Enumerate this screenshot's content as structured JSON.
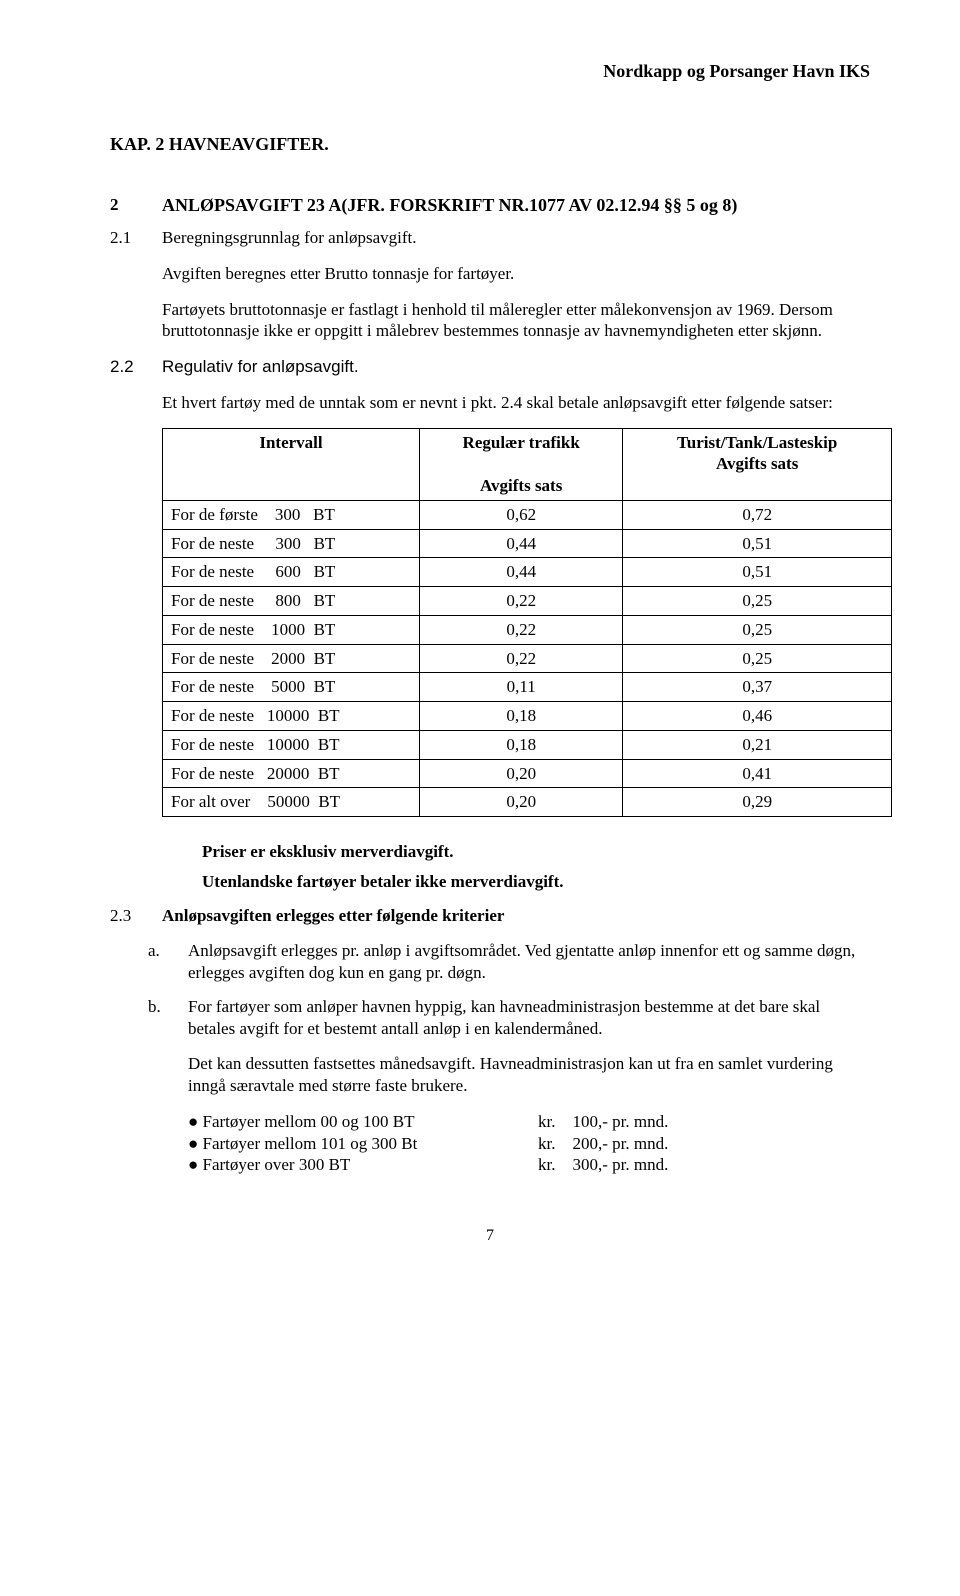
{
  "header": "Nordkapp og Porsanger Havn IKS",
  "kap": "KAP. 2   HAVNEAVGIFTER.",
  "s2": {
    "num": "2",
    "title": "ANLØPSAVGIFT 23 A(JFR. FORSKRIFT NR.1077 AV 02.12.94 §§ 5 og 8)"
  },
  "s21": {
    "num": "2.1",
    "title": "Beregningsgrunnlag for anløpsavgift.",
    "p1": "Avgiften beregnes etter Brutto tonnasje for fartøyer.",
    "p2": "Fartøyets bruttotonnasje er fastlagt i henhold til måleregler etter målekonvensjon av 1969. Dersom bruttotonnasje ikke er oppgitt i målebrev bestemmes tonnasje av havnemyndigheten etter skjønn."
  },
  "s22": {
    "num": "2.2",
    "title": "Regulativ for anløpsavgift.",
    "intro": "Et hvert fartøy med de unntak som er nevnt i pkt. 2.4 skal betale anløpsavgift etter følgende satser:"
  },
  "table": {
    "headers": {
      "c1": "Intervall",
      "c2a": "Regulær trafikk",
      "c2b": "Avgifts sats",
      "c3a": "Turist/Tank/Lasteskip",
      "c3b": "Avgifts sats"
    },
    "rows": [
      {
        "i": "For de første    300   BT",
        "a": "0,62",
        "b": "0,72"
      },
      {
        "i": "For de neste     300   BT",
        "a": "0,44",
        "b": "0,51"
      },
      {
        "i": "For de neste     600   BT",
        "a": "0,44",
        "b": "0,51"
      },
      {
        "i": "For de neste     800   BT",
        "a": "0,22",
        "b": "0,25"
      },
      {
        "i": "For de neste    1000  BT",
        "a": "0,22",
        "b": "0,25"
      },
      {
        "i": "For de neste    2000  BT",
        "a": "0,22",
        "b": "0,25"
      },
      {
        "i": "For de neste    5000  BT",
        "a": "0,11",
        "b": "0,37"
      },
      {
        "i": "For de neste   10000  BT",
        "a": "0,18",
        "b": "0,46"
      },
      {
        "i": "For de neste   10000  BT",
        "a": "0,18",
        "b": "0,21"
      },
      {
        "i": "For de neste   20000  BT",
        "a": "0,20",
        "b": "0,41"
      },
      {
        "i": "For alt over    50000  BT",
        "a": "0,20",
        "b": "0,29"
      }
    ]
  },
  "notes": {
    "n1": "Priser er eksklusiv merverdiavgift.",
    "n2": "Utenlandske fartøyer betaler ikke merverdiavgift."
  },
  "s23": {
    "num": "2.3",
    "title": "Anløpsavgiften erlegges etter følgende kriterier",
    "a": {
      "lbl": "a.",
      "txt": "Anløpsavgift erlegges pr. anløp i avgiftsområdet.  Ved gjentatte anløp innenfor ett og samme døgn, erlegges avgiften dog kun en gang pr. døgn."
    },
    "b": {
      "lbl": "b.",
      "txt": "For fartøyer som anløper havnen hyppig, kan havneadministrasjon bestemme at det bare skal betales avgift for et bestemt antall anløp i en kalendermåned.",
      "p2": "Det kan dessutten fastsettes månedsavgift.  Havneadministrasjon kan ut fra en samlet vurdering inngå særavtale med større faste brukere.",
      "bullets": [
        {
          "d": "● Fartøyer mellom  00 og  100  BT",
          "p": "kr.    100,- pr. mnd."
        },
        {
          "d": "● Fartøyer mellom 101 og 300 Bt",
          "p": "kr.    200,- pr. mnd."
        },
        {
          "d": "● Fartøyer over 300 BT",
          "p": "kr.    300,- pr. mnd."
        }
      ]
    }
  },
  "pagenum": "7"
}
